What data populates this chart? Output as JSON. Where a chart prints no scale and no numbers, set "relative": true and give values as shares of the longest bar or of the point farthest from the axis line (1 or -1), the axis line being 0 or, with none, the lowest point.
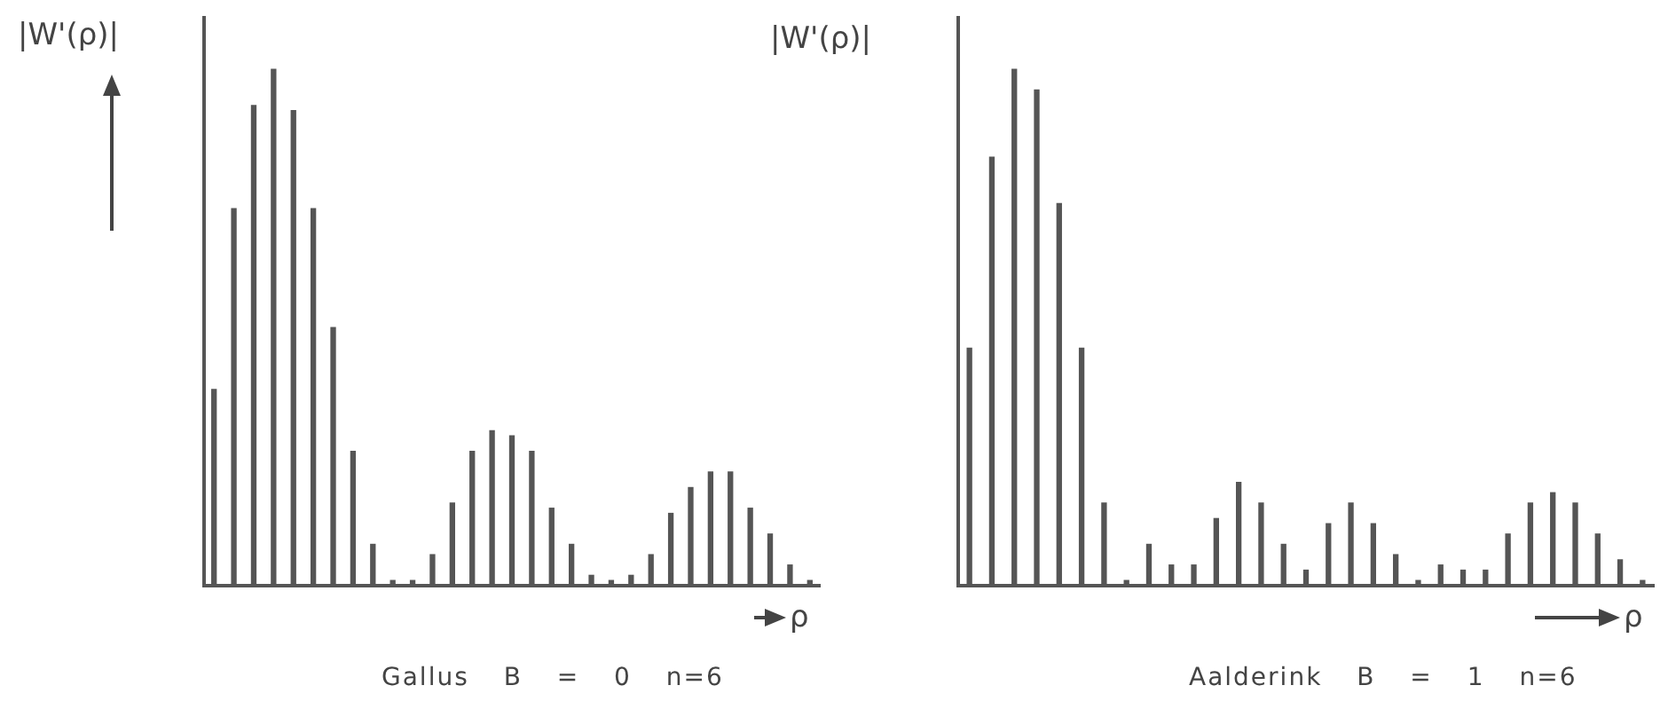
{
  "chart_data": [
    {
      "type": "bar",
      "relative": true,
      "title": "Gallus B = 0 n=6",
      "xlabel": "ρ",
      "ylabel": "|W'(ρ)|",
      "color": "#555555",
      "categories": [
        null,
        null,
        null,
        null,
        null,
        null,
        null,
        null,
        null,
        null,
        null,
        null,
        null,
        null,
        null,
        null,
        null,
        null,
        null,
        null,
        null,
        null,
        null,
        null,
        null,
        null,
        null,
        null,
        null,
        null,
        null
      ],
      "values": [
        0.38,
        0.73,
        0.93,
        1,
        0.92,
        0.73,
        0.5,
        0.26,
        0.08,
        0.01,
        0.01,
        0.06,
        0.16,
        0.26,
        0.3,
        0.29,
        0.26,
        0.15,
        0.08,
        0.02,
        0.01,
        0.02,
        0.06,
        0.14,
        0.19,
        0.22,
        0.22,
        0.15,
        0.1,
        0.04,
        0.01
      ]
    },
    {
      "type": "bar",
      "relative": true,
      "title": "Aalderink B = 1 n=6",
      "xlabel": "ρ",
      "ylabel": "|W'(ρ)|",
      "color": "#555555",
      "categories": [
        null,
        null,
        null,
        null,
        null,
        null,
        null,
        null,
        null,
        null,
        null,
        null,
        null,
        null,
        null,
        null,
        null,
        null,
        null,
        null,
        null,
        null,
        null,
        null,
        null,
        null,
        null,
        null,
        null,
        null,
        null
      ],
      "values": [
        0.46,
        0.83,
        1,
        0.96,
        0.74,
        0.46,
        0.16,
        0.01,
        0.08,
        0.04,
        0.04,
        0.13,
        0.2,
        0.16,
        0.08,
        0.03,
        0.12,
        0.16,
        0.12,
        0.06,
        0.01,
        0.04,
        0.03,
        0.03,
        0.1,
        0.16,
        0.18,
        0.16,
        0.1,
        0.05,
        0.01
      ]
    }
  ]
}
